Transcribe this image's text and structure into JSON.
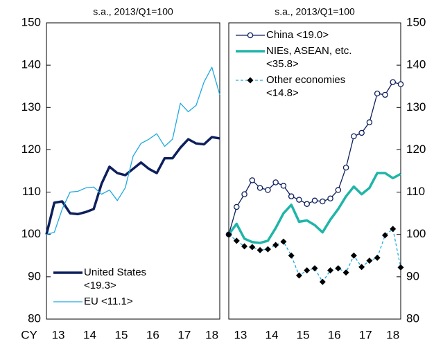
{
  "chart_data": [
    {
      "type": "line",
      "subtitle": "s.a., 2013/Q1=100",
      "x_label": "CY",
      "axis_side": "left",
      "legend": "lower left",
      "xlim": [
        0,
        22
      ],
      "xticks": [
        {
          "value": 1.5,
          "label": "13"
        },
        {
          "value": 5.5,
          "label": "14"
        },
        {
          "value": 9.5,
          "label": "15"
        },
        {
          "value": 13.5,
          "label": "16"
        },
        {
          "value": 17.5,
          "label": "17"
        },
        {
          "value": 21,
          "label": "18"
        }
      ],
      "ylim": [
        80,
        150
      ],
      "yticks": [
        80,
        90,
        100,
        110,
        120,
        130,
        140,
        150
      ],
      "series": [
        {
          "name": "United States <19.3>",
          "color": "#0d1f5c",
          "width": 3.5,
          "values": [
            100,
            107.5,
            107.8,
            105,
            104.8,
            105.3,
            106,
            112,
            116,
            114.5,
            114,
            115.5,
            117,
            115.5,
            114.5,
            118,
            118,
            120.5,
            122.5,
            121.5,
            121.3,
            123,
            122.7
          ]
        },
        {
          "name": "EU <11.1>",
          "color": "#1fa9e1",
          "width": 1.3,
          "values": [
            100,
            100.5,
            106,
            110,
            110.2,
            111,
            111.2,
            109.5,
            110.5,
            108,
            111,
            118.5,
            121.5,
            122.5,
            123.8,
            120.8,
            122.5,
            131,
            129,
            130.5,
            136,
            139.5,
            133
          ]
        }
      ]
    },
    {
      "type": "line",
      "subtitle": "s.a., 2013/Q1=100",
      "axis_side": "right",
      "legend": "upper left",
      "xlim": [
        0,
        22
      ],
      "xticks": [
        {
          "value": 1.5,
          "label": "13"
        },
        {
          "value": 5.5,
          "label": "14"
        },
        {
          "value": 9.5,
          "label": "15"
        },
        {
          "value": 13.5,
          "label": "16"
        },
        {
          "value": 17.5,
          "label": "17"
        },
        {
          "value": 21,
          "label": "18"
        }
      ],
      "ylim": [
        80,
        150
      ],
      "yticks": [
        80,
        90,
        100,
        110,
        120,
        130,
        140,
        150
      ],
      "series": [
        {
          "name": "China <19.0>",
          "color": "#0d1f5c",
          "width": 1.3,
          "marker": "circle",
          "values": [
            100,
            106.5,
            109.5,
            112.8,
            111,
            110.5,
            112.3,
            111.5,
            109,
            108.2,
            107.2,
            108,
            107.8,
            108.5,
            110.5,
            115.8,
            123.2,
            124,
            126.5,
            133.3,
            133,
            136,
            135.5
          ]
        },
        {
          "name": "NIEs, ASEAN, etc. <35.8>",
          "color": "#1fb5a8",
          "width": 3.5,
          "values": [
            100,
            102.5,
            99,
            98.2,
            98,
            98.5,
            101.5,
            105,
            107,
            103,
            103.3,
            102.2,
            100.5,
            103.5,
            106,
            109,
            111.3,
            109.5,
            111,
            114.5,
            114.5,
            113.3,
            114.3
          ]
        },
        {
          "name": "Other economies <14.8>",
          "color": "#1fa9e1",
          "width": 1.3,
          "dash": true,
          "marker": "diamond",
          "values": [
            100,
            98.5,
            97.2,
            97,
            96.3,
            96.5,
            97.5,
            98.3,
            95,
            90.3,
            91.5,
            92,
            88.8,
            91.5,
            92,
            91,
            95,
            92.3,
            93.8,
            94.5,
            99.8,
            101.3,
            92.2
          ]
        }
      ]
    }
  ]
}
